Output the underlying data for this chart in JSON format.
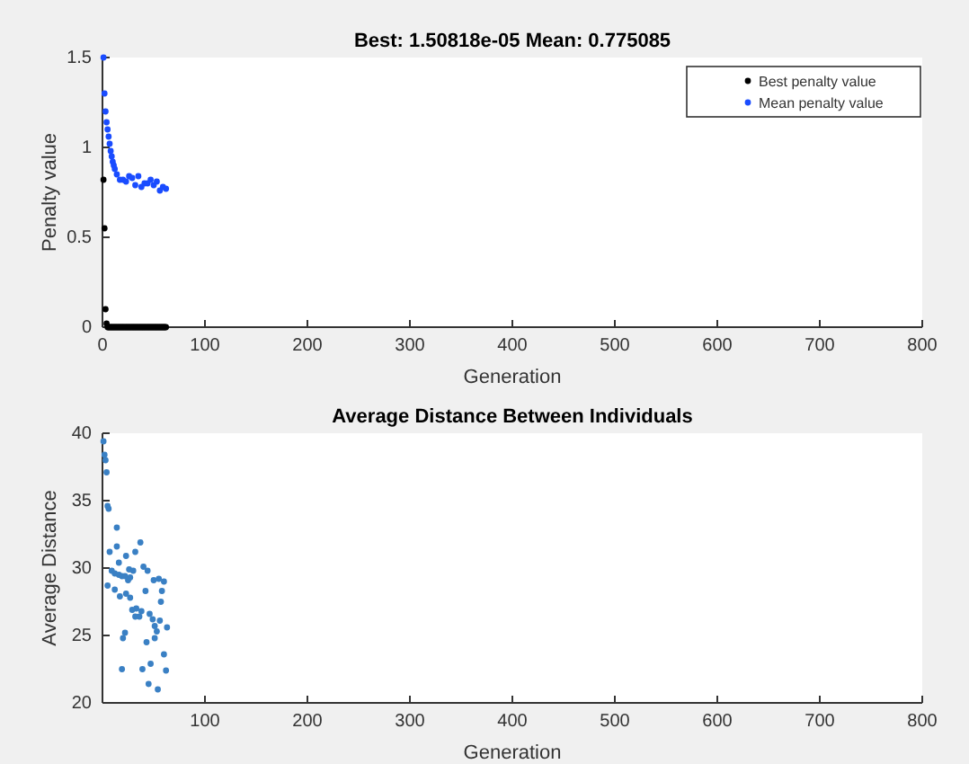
{
  "chart_data": [
    {
      "type": "scatter",
      "title": "Best: 1.50818e-05 Mean: 0.775085",
      "xlabel": "Generation",
      "ylabel": "Penalty value",
      "xlim": [
        0,
        800
      ],
      "xticks": [
        0,
        100,
        200,
        300,
        400,
        500,
        600,
        700,
        800
      ],
      "ylim": [
        0,
        1.5
      ],
      "yticks": [
        0,
        0.5,
        1,
        1.5
      ],
      "legend": "top right",
      "marker": "circle",
      "x": [
        1,
        2,
        3,
        4,
        5,
        6,
        7,
        8,
        9,
        10,
        11,
        12,
        13,
        14,
        15,
        16,
        17,
        18,
        19,
        20,
        21,
        22,
        23,
        24,
        25,
        26,
        27,
        28,
        29,
        30,
        31,
        32,
        33,
        34,
        35,
        36,
        37,
        38,
        39,
        40,
        41,
        42,
        43,
        44,
        45,
        46,
        47,
        48,
        49,
        50,
        51,
        52,
        53,
        54,
        55,
        56,
        57,
        58,
        59,
        60,
        61,
        62
      ],
      "series": [
        {
          "name": "Best penalty value",
          "color": "#000000",
          "values": [
            0.82,
            0.55,
            0.1,
            0.02,
            0,
            0,
            0,
            0,
            0,
            0,
            0,
            0,
            0,
            0,
            0,
            0,
            0,
            0,
            0,
            0,
            0,
            0,
            0,
            0,
            0,
            0,
            0,
            0,
            0,
            0,
            0,
            0,
            0,
            0,
            0,
            0,
            0,
            0,
            0,
            0,
            0,
            0,
            0,
            0,
            0,
            0,
            0,
            0,
            0,
            0,
            0,
            0,
            0,
            0,
            0,
            0,
            0,
            0,
            0,
            0,
            0,
            0
          ]
        },
        {
          "name": "Mean penalty value",
          "color": "#1a4cff",
          "x": [
            1,
            2,
            3,
            4,
            5,
            6,
            7,
            8,
            9,
            10,
            11,
            12,
            14,
            17,
            20,
            23,
            26,
            29,
            32,
            35,
            38,
            41,
            44,
            47,
            50,
            53,
            56,
            59,
            62
          ],
          "values": [
            1.5,
            1.3,
            1.2,
            1.14,
            1.1,
            1.06,
            1.02,
            0.98,
            0.95,
            0.92,
            0.9,
            0.88,
            0.85,
            0.82,
            0.82,
            0.81,
            0.84,
            0.83,
            0.79,
            0.84,
            0.78,
            0.8,
            0.8,
            0.82,
            0.79,
            0.81,
            0.76,
            0.78,
            0.77
          ]
        }
      ]
    },
    {
      "type": "scatter",
      "title": "Average Distance Between Individuals",
      "xlabel": "Generation",
      "ylabel": "Average Distance",
      "xlim": [
        0,
        800
      ],
      "xticks": [
        100,
        200,
        300,
        400,
        500,
        600,
        700,
        800
      ],
      "ylim": [
        20,
        40
      ],
      "yticks": [
        20,
        25,
        30,
        35,
        40
      ],
      "legend": false,
      "marker": "circle",
      "series": [
        {
          "color": "#3a80c4",
          "x": [
            1,
            2,
            3,
            4,
            5,
            6,
            14,
            7,
            14,
            5,
            9,
            12,
            16,
            19,
            22,
            12,
            16,
            23,
            26,
            30,
            37,
            32,
            25,
            27,
            23,
            17,
            27,
            29,
            33,
            38,
            36,
            32,
            40,
            44,
            42,
            46,
            49,
            51,
            53,
            50,
            55,
            60,
            58,
            57,
            56,
            63,
            22,
            20,
            43,
            51,
            19,
            39,
            47,
            60,
            62,
            45,
            54
          ],
          "values": [
            39.4,
            38.4,
            38.0,
            37.1,
            34.6,
            34.4,
            33.0,
            31.2,
            31.6,
            28.7,
            29.8,
            29.6,
            29.5,
            29.4,
            29.4,
            28.4,
            30.4,
            30.9,
            29.9,
            29.8,
            31.9,
            31.2,
            29.1,
            29.3,
            28.1,
            27.9,
            27.8,
            26.9,
            27.0,
            26.8,
            26.4,
            26.4,
            30.1,
            29.8,
            28.3,
            26.6,
            26.2,
            25.7,
            25.3,
            29.1,
            29.2,
            29.0,
            28.3,
            27.5,
            26.1,
            25.6,
            25.2,
            24.8,
            24.5,
            24.8,
            22.5,
            22.5,
            22.9,
            23.6,
            22.4,
            21.4,
            21.0
          ]
        }
      ]
    }
  ]
}
